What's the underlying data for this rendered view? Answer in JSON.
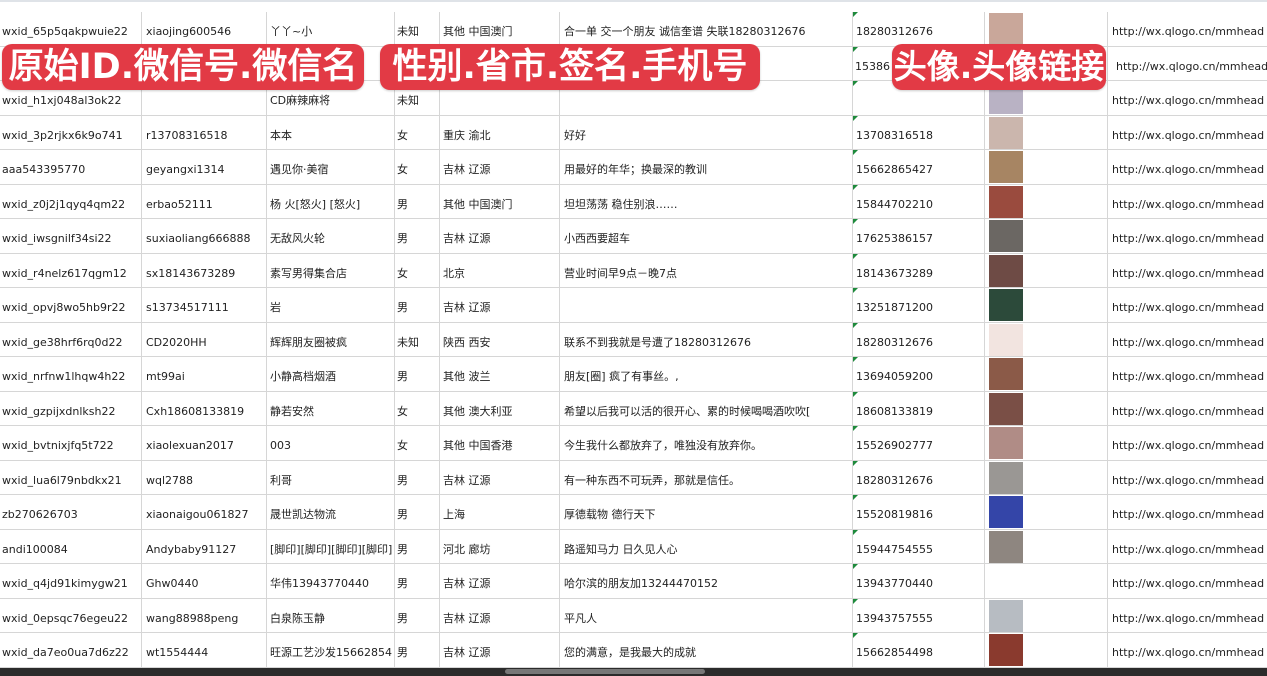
{
  "banners": {
    "left": "原始ID.微信号.微信名",
    "middle": "性别.省市.签名.手机号",
    "right": "头像.头像链接"
  },
  "colors": {
    "banner": "#e23a45",
    "grid": "#d6d6d6",
    "comment_marker": "#1e8a3c"
  },
  "rows": [
    {
      "id": "wxid_65p5qakpwuie22",
      "wechat": "xiaojing600546",
      "name": "丫丫~小",
      "gender": "未知",
      "region": "其他 中国澳门",
      "signature": "合一单 交一个朋友 诚信奎谱 失联18280312676",
      "phone": "18280312676",
      "avatar": "#c9a79a",
      "url": "http://wx.qlogo.cn/mmhead"
    },
    {
      "id": "",
      "wechat": "",
      "name": "",
      "gender": "",
      "region": "",
      "signature": "",
      "phone": "15386",
      "avatar": "#5a6fb0",
      "url": "http://wx.qlogo.cn/mmhead"
    },
    {
      "id": "wxid_h1xj048al3ok22",
      "wechat": "",
      "name": "CD麻辣麻将",
      "gender": "未知",
      "region": "",
      "signature": "",
      "phone": "",
      "avatar": "#b9b2c4",
      "url": "http://wx.qlogo.cn/mmhead"
    },
    {
      "id": "wxid_3p2rjkx6k9o741",
      "wechat": "r13708316518",
      "name": "本本",
      "gender": "女",
      "region": "重庆 渝北",
      "signature": "好好",
      "phone": "13708316518",
      "avatar": "#cbb6ad",
      "url": "http://wx.qlogo.cn/mmhead"
    },
    {
      "id": "aaa543395770",
      "wechat": "geyangxi1314",
      "name": "遇见你·美宿",
      "gender": "女",
      "region": "吉林 辽源",
      "signature": "用最好的年华；换最深的教训",
      "phone": "15662865427",
      "avatar": "#a78563",
      "url": "http://wx.qlogo.cn/mmhead"
    },
    {
      "id": "wxid_z0j2j1qyq4qm22",
      "wechat": "erbao52111",
      "name": "杨 火[怒火] [怒火]",
      "gender": "男",
      "region": "其他 中国澳门",
      "signature": "坦坦荡荡 稳住别浪……",
      "phone": "15844702210",
      "avatar": "#9a4b3e",
      "url": "http://wx.qlogo.cn/mmhead"
    },
    {
      "id": "wxid_iwsgnilf34si22",
      "wechat": "suxiaoliang666888",
      "name": "无敌风火轮",
      "gender": "男",
      "region": "吉林 辽源",
      "signature": "小西西要超车",
      "phone": "17625386157",
      "avatar": "#6b6763",
      "url": "http://wx.qlogo.cn/mmhead"
    },
    {
      "id": "wxid_r4nelz617qgm12",
      "wechat": "sx18143673289",
      "name": "素写男得集合店",
      "gender": "女",
      "region": "北京",
      "signature": "营业时间早9点－晚7点",
      "phone": "18143673289",
      "avatar": "#6e4b45",
      "url": "http://wx.qlogo.cn/mmhead"
    },
    {
      "id": "wxid_opvj8wo5hb9r22",
      "wechat": "s13734517111",
      "name": "岩",
      "gender": "男",
      "region": "吉林 辽源",
      "signature": "",
      "phone": "13251871200",
      "avatar": "#2c4a3a",
      "url": "http://wx.qlogo.cn/mmhead"
    },
    {
      "id": "wxid_ge38hrf6rq0d22",
      "wechat": "CD2020HH",
      "name": "辉辉朋友圈被疯",
      "gender": "未知",
      "region": "陕西 西安",
      "signature": "联系不到我就是号遭了18280312676",
      "phone": "18280312676",
      "avatar": "#f2e4e0",
      "url": "http://wx.qlogo.cn/mmhead"
    },
    {
      "id": "wxid_nrfnw1lhqw4h22",
      "wechat": "mt99ai",
      "name": "小静高档烟酒",
      "gender": "男",
      "region": "其他 波兰",
      "signature": "朋友[圈] 疯了有事丝。,",
      "phone": "13694059200",
      "avatar": "#8b5a48",
      "url": "http://wx.qlogo.cn/mmhead"
    },
    {
      "id": "wxid_gzpijxdnlksh22",
      "wechat": "Cxh18608133819",
      "name": "静若安然",
      "gender": "女",
      "region": "其他 澳大利亚",
      "signature": "希望以后我可以活的很开心、累的时候喝喝酒吹吹[",
      "phone": "18608133819",
      "avatar": "#7a4f46",
      "url": "http://wx.qlogo.cn/mmhead"
    },
    {
      "id": "wxid_bvtnixjfq5t722",
      "wechat": "xiaolexuan2017",
      "name": "003",
      "gender": "女",
      "region": "其他 中国香港",
      "signature": "今生我什么都放弃了，唯独没有放弃你。",
      "phone": "15526902777",
      "avatar": "#b08c86",
      "url": "http://wx.qlogo.cn/mmhead"
    },
    {
      "id": "wxid_lua6l79nbdkx21",
      "wechat": "wql2788",
      "name": "利哥",
      "gender": "男",
      "region": "吉林 辽源",
      "signature": "有一种东西不可玩弄，那就是信任。",
      "phone": "18280312676",
      "avatar": "#9a9794",
      "url": "http://wx.qlogo.cn/mmhead"
    },
    {
      "id": "zb270626703",
      "wechat": "xiaonaigou061827",
      "name": "晟世凯达物流",
      "gender": "男",
      "region": "上海",
      "signature": "厚德载物 德行天下",
      "phone": "15520819816",
      "avatar": "#3445a8",
      "url": "http://wx.qlogo.cn/mmhead"
    },
    {
      "id": "andi100084",
      "wechat": "Andybaby91127",
      "name": "[脚印][脚印][脚印][脚印]",
      "gender": "男",
      "region": "河北 廊坊",
      "signature": "路遥知马力 日久见人心",
      "phone": "15944754555",
      "avatar": "#8e8680",
      "url": "http://wx.qlogo.cn/mmhead"
    },
    {
      "id": "wxid_q4jd91kimygw21",
      "wechat": "Ghw0440",
      "name": "华伟13943770440",
      "gender": "男",
      "region": "吉林 辽源",
      "signature": "哈尔滨的朋友加13244470152",
      "phone": "13943770440",
      "avatar": "#ffffff",
      "url": "http://wx.qlogo.cn/mmhead"
    },
    {
      "id": "wxid_0epsqc76egeu22",
      "wechat": "wang88988peng",
      "name": "白泉陈玉静",
      "gender": "男",
      "region": "吉林 辽源",
      "signature": "平凡人",
      "phone": "13943757555",
      "avatar": "#b7bcc2",
      "url": "http://wx.qlogo.cn/mmhead"
    },
    {
      "id": "wxid_da7eo0ua7d6z22",
      "wechat": "wt1554444",
      "name": "旺源工艺沙发15662854",
      "gender": "男",
      "region": "吉林 辽源",
      "signature": "您的满意，是我最大的成就",
      "phone": "15662854498",
      "avatar": "#8a3a2e",
      "url": "http://wx.qlogo.cn/mmhead"
    },
    {
      "id": "",
      "wechat": "",
      "name": "",
      "gender": "",
      "region": "",
      "signature": "",
      "phone": "",
      "avatar": "#8fa7c4",
      "url": ""
    }
  ]
}
